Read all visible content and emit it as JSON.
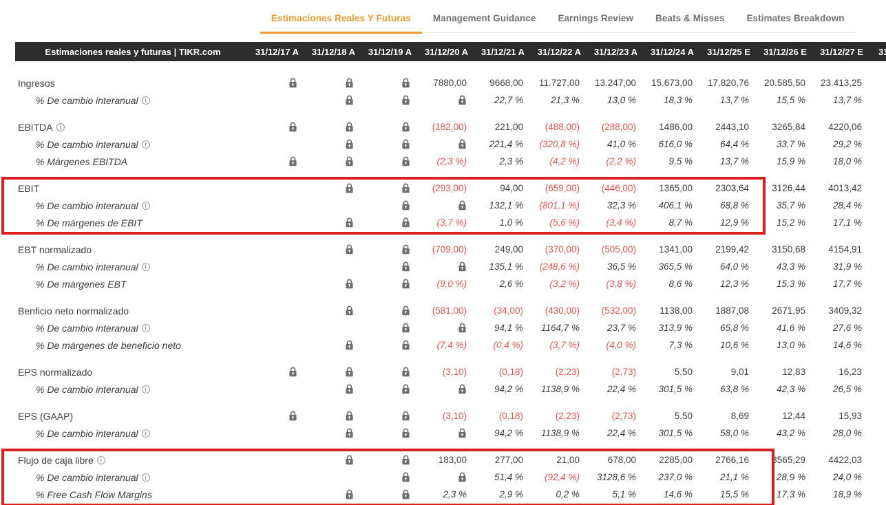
{
  "tabs": [
    {
      "label": "Estimaciones Reales Y Futuras",
      "active": true
    },
    {
      "label": "Management Guidance",
      "active": false
    },
    {
      "label": "Earnings Review",
      "active": false
    },
    {
      "label": "Beats & Misses",
      "active": false
    },
    {
      "label": "Estimates Breakdown",
      "active": false
    }
  ],
  "table": {
    "title": "Estimaciones reales y futuras | TIKR.com",
    "columns": [
      "31/12/17 A",
      "31/12/18 A",
      "31/12/19 A",
      "31/12/20 A",
      "31/12/21 A",
      "31/12/22 A",
      "31/12/23 A",
      "31/12/24 A",
      "31/12/25 E",
      "31/12/26 E",
      "31/12/27 E",
      "31/1"
    ],
    "groups": [
      {
        "highlighted": false,
        "rows": [
          {
            "label": "Ingresos",
            "info": false,
            "sub": false,
            "cells": [
              "LOCK",
              "LOCK",
              "LOCK",
              "7880,00",
              "9668,00",
              "11.727,00",
              "13.247,00",
              "15.673,00",
              "17.820,76",
              "20.585,50",
              "23.413,25",
              ""
            ]
          },
          {
            "label": "% De cambio interanual",
            "info": true,
            "sub": true,
            "cells": [
              "",
              "LOCK",
              "LOCK",
              "LOCK",
              "22,7 %",
              "21,3 %",
              "13,0 %",
              "18,3 %",
              "13,7 %",
              "15,5 %",
              "13,7 %",
              ""
            ]
          }
        ]
      },
      {
        "highlighted": false,
        "rows": [
          {
            "label": "EBITDA",
            "info": true,
            "sub": false,
            "cells": [
              "LOCK",
              "LOCK",
              "LOCK",
              "(182,00)",
              "221,00",
              "(488,00)",
              "(288,00)",
              "1486,00",
              "2443,10",
              "3265,84",
              "4220,06",
              ""
            ]
          },
          {
            "label": "% De cambio interanual",
            "info": true,
            "sub": true,
            "cells": [
              "",
              "LOCK",
              "LOCK",
              "LOCK",
              "221,4 %",
              "(320,8 %)",
              "41,0 %",
              "616,0 %",
              "64,4 %",
              "33,7 %",
              "29,2 %",
              ""
            ]
          },
          {
            "label": "% Márgenes EBITDA",
            "info": false,
            "sub": true,
            "cells": [
              "LOCK",
              "LOCK",
              "LOCK",
              "(2,3 %)",
              "2,3 %",
              "(4,2 %)",
              "(2,2 %)",
              "9,5 %",
              "13,7 %",
              "15,9 %",
              "18,0 %",
              ""
            ]
          }
        ]
      },
      {
        "highlighted": true,
        "rows": [
          {
            "label": "EBIT",
            "info": false,
            "sub": false,
            "cells": [
              "",
              "LOCK",
              "LOCK",
              "(293,00)",
              "94,00",
              "(659,00)",
              "(446,00)",
              "1365,00",
              "2303,64",
              "3126,44",
              "4013,42",
              ""
            ]
          },
          {
            "label": "% De cambio interanual",
            "info": true,
            "sub": true,
            "cells": [
              "",
              "",
              "LOCK",
              "LOCK",
              "132,1 %",
              "(801,1 %)",
              "32,3 %",
              "406,1 %",
              "68,8 %",
              "35,7 %",
              "28,4 %",
              ""
            ]
          },
          {
            "label": "% De márgenes de EBIT",
            "info": false,
            "sub": true,
            "cells": [
              "",
              "LOCK",
              "LOCK",
              "(3,7 %)",
              "1,0 %",
              "(5,6 %)",
              "(3,4 %)",
              "8,7 %",
              "12,9 %",
              "15,2 %",
              "17,1 %",
              ""
            ]
          }
        ]
      },
      {
        "highlighted": false,
        "rows": [
          {
            "label": "EBT normalizado",
            "info": false,
            "sub": false,
            "cells": [
              "",
              "LOCK",
              "LOCK",
              "(709,00)",
              "249,00",
              "(370,00)",
              "(505,00)",
              "1341,00",
              "2199,42",
              "3150,68",
              "4154,91",
              ""
            ]
          },
          {
            "label": "% De cambio interanual",
            "info": true,
            "sub": true,
            "cells": [
              "",
              "",
              "LOCK",
              "LOCK",
              "135,1 %",
              "(248,6 %)",
              "36,5 %",
              "365,5 %",
              "64,0 %",
              "43,3 %",
              "31,9 %",
              ""
            ]
          },
          {
            "label": "% De márgenes EBT",
            "info": false,
            "sub": true,
            "cells": [
              "",
              "LOCK",
              "LOCK",
              "(9,0 %)",
              "2,6 %",
              "(3,2 %)",
              "(3,8 %)",
              "8,6 %",
              "12,3 %",
              "15,3 %",
              "17,7 %",
              ""
            ]
          }
        ]
      },
      {
        "highlighted": false,
        "rows": [
          {
            "label": "Benficio neto normalizado",
            "info": false,
            "sub": false,
            "cells": [
              "",
              "LOCK",
              "LOCK",
              "(581,00)",
              "(34,00)",
              "(430,00)",
              "(532,00)",
              "1138,00",
              "1887,08",
              "2671,95",
              "3409,32",
              ""
            ]
          },
          {
            "label": "% De cambio interanual",
            "info": true,
            "sub": true,
            "cells": [
              "",
              "",
              "LOCK",
              "LOCK",
              "94,1 %",
              "1164,7 %",
              "23,7 %",
              "313,9 %",
              "65,8 %",
              "41,6 %",
              "27,6 %",
              ""
            ]
          },
          {
            "label": "% De márgenes de beneficio neto",
            "info": false,
            "sub": true,
            "cells": [
              "",
              "LOCK",
              "LOCK",
              "(7,4 %)",
              "(0,4 %)",
              "(3,7 %)",
              "(4,0 %)",
              "7,3 %",
              "10,6 %",
              "13,0 %",
              "14,6 %",
              ""
            ]
          }
        ]
      },
      {
        "highlighted": false,
        "rows": [
          {
            "label": "EPS normalizado",
            "info": false,
            "sub": false,
            "cells": [
              "LOCK",
              "LOCK",
              "LOCK",
              "(3,10)",
              "(0,18)",
              "(2,23)",
              "(2,73)",
              "5,50",
              "9,01",
              "12,83",
              "16,23",
              ""
            ]
          },
          {
            "label": "% De cambio interanual",
            "info": true,
            "sub": true,
            "cells": [
              "",
              "LOCK",
              "LOCK",
              "LOCK",
              "94,2 %",
              "1138,9 %",
              "22,4 %",
              "301,5 %",
              "63,8 %",
              "42,3 %",
              "26,5 %",
              ""
            ]
          }
        ]
      },
      {
        "highlighted": false,
        "rows": [
          {
            "label": "EPS (GAAP)",
            "info": false,
            "sub": false,
            "cells": [
              "LOCK",
              "LOCK",
              "LOCK",
              "(3,10)",
              "(0,18)",
              "(2,23)",
              "(2,73)",
              "5,50",
              "8,69",
              "12,44",
              "15,93",
              ""
            ]
          },
          {
            "label": "% De cambio interanual",
            "info": true,
            "sub": true,
            "cells": [
              "",
              "LOCK",
              "LOCK",
              "LOCK",
              "94,2 %",
              "1138,9 %",
              "22,4 %",
              "301,5 %",
              "58,0 %",
              "43,2 %",
              "28,0 %",
              ""
            ]
          }
        ]
      },
      {
        "highlighted": true,
        "rows": [
          {
            "label": "Flujo de caja libre",
            "info": true,
            "sub": false,
            "cells": [
              "",
              "LOCK",
              "LOCK",
              "183,00",
              "277,00",
              "21,00",
              "678,00",
              "2285,00",
              "2766,16",
              "3565,29",
              "4422,03",
              ""
            ]
          },
          {
            "label": "% De cambio interanual",
            "info": true,
            "sub": true,
            "cells": [
              "",
              "",
              "LOCK",
              "LOCK",
              "51,4 %",
              "(92,4 %)",
              "3128,6 %",
              "237,0 %",
              "21,1 %",
              "28,9 %",
              "24,0 %",
              ""
            ]
          },
          {
            "label": "% Free Cash Flow Margins",
            "info": false,
            "sub": true,
            "cells": [
              "",
              "LOCK",
              "LOCK",
              "2,3 %",
              "2,9 %",
              "0,2 %",
              "5,1 %",
              "14,6 %",
              "15,5 %",
              "17,3 %",
              "18,9 %",
              ""
            ]
          }
        ]
      }
    ]
  },
  "colors": {
    "accent_orange": "#f09b30",
    "negative_red": "#e4574f",
    "highlight_box_red": "#dd1e1e",
    "header_bg": "#2d2d2d",
    "lock_gray": "#6e6e6e"
  }
}
